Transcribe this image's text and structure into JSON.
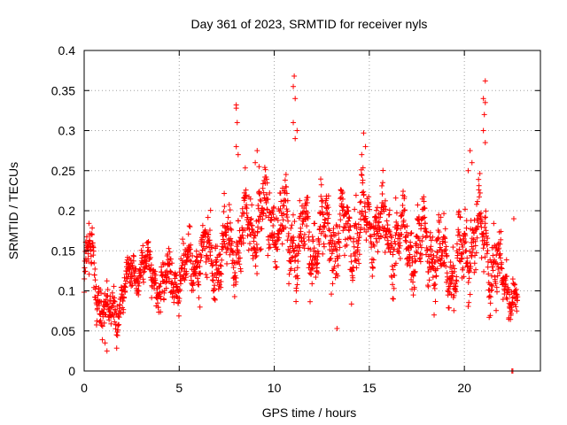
{
  "chart_data": {
    "type": "scatter",
    "title": "Day 361 of 2023, SRMTID for receiver nyls",
    "xlabel": "GPS time / hours",
    "ylabel": "SRMTID / TECUs",
    "xlim": [
      0,
      24
    ],
    "ylim": [
      0,
      0.4
    ],
    "xticks": [
      0,
      5,
      10,
      15,
      20
    ],
    "xtick_labels": [
      "0",
      "5",
      "10",
      "15",
      "20"
    ],
    "yticks": [
      0,
      0.05,
      0.1,
      0.15,
      0.2,
      0.25,
      0.3,
      0.35,
      0.4
    ],
    "ytick_labels": [
      "0",
      "0.05",
      "0.1",
      "0.15",
      "0.2",
      "0.25",
      "0.3",
      "0.35",
      "0.4"
    ],
    "grid": true,
    "marker": "+",
    "color": "#ff0000",
    "trend": [
      {
        "x": 0.0,
        "y": 0.12
      },
      {
        "x": 0.3,
        "y": 0.15
      },
      {
        "x": 0.7,
        "y": 0.1
      },
      {
        "x": 1.2,
        "y": 0.065
      },
      {
        "x": 1.8,
        "y": 0.085
      },
      {
        "x": 2.5,
        "y": 0.12
      },
      {
        "x": 3.0,
        "y": 0.13
      },
      {
        "x": 4.0,
        "y": 0.11
      },
      {
        "x": 5.0,
        "y": 0.12
      },
      {
        "x": 6.0,
        "y": 0.14
      },
      {
        "x": 7.0,
        "y": 0.14
      },
      {
        "x": 8.0,
        "y": 0.16
      },
      {
        "x": 9.0,
        "y": 0.19
      },
      {
        "x": 10.0,
        "y": 0.19
      },
      {
        "x": 11.0,
        "y": 0.17
      },
      {
        "x": 12.0,
        "y": 0.16
      },
      {
        "x": 13.0,
        "y": 0.17
      },
      {
        "x": 14.0,
        "y": 0.17
      },
      {
        "x": 15.0,
        "y": 0.19
      },
      {
        "x": 16.0,
        "y": 0.17
      },
      {
        "x": 17.0,
        "y": 0.16
      },
      {
        "x": 18.0,
        "y": 0.16
      },
      {
        "x": 19.0,
        "y": 0.13
      },
      {
        "x": 20.0,
        "y": 0.14
      },
      {
        "x": 20.5,
        "y": 0.18
      },
      {
        "x": 21.0,
        "y": 0.16
      },
      {
        "x": 21.5,
        "y": 0.14
      },
      {
        "x": 22.0,
        "y": 0.11
      },
      {
        "x": 22.8,
        "y": 0.09
      }
    ],
    "spread": [
      {
        "x": 0.0,
        "s": 0.035
      },
      {
        "x": 2.5,
        "s": 0.022
      },
      {
        "x": 5.0,
        "s": 0.03
      },
      {
        "x": 8.0,
        "s": 0.045
      },
      {
        "x": 11.0,
        "s": 0.045
      },
      {
        "x": 15.0,
        "s": 0.045
      },
      {
        "x": 18.0,
        "s": 0.04
      },
      {
        "x": 21.0,
        "s": 0.05
      },
      {
        "x": 22.8,
        "s": 0.02
      }
    ],
    "n_points": 2000,
    "notable_points": [
      {
        "x": 11.05,
        "y": 0.368
      },
      {
        "x": 11.0,
        "y": 0.355
      },
      {
        "x": 11.1,
        "y": 0.34
      },
      {
        "x": 11.0,
        "y": 0.31
      },
      {
        "x": 11.2,
        "y": 0.3
      },
      {
        "x": 11.1,
        "y": 0.29
      },
      {
        "x": 8.0,
        "y": 0.332
      },
      {
        "x": 8.0,
        "y": 0.328
      },
      {
        "x": 8.05,
        "y": 0.31
      },
      {
        "x": 8.0,
        "y": 0.28
      },
      {
        "x": 8.1,
        "y": 0.27
      },
      {
        "x": 21.1,
        "y": 0.362
      },
      {
        "x": 21.0,
        "y": 0.34
      },
      {
        "x": 21.1,
        "y": 0.335
      },
      {
        "x": 21.05,
        "y": 0.32
      },
      {
        "x": 21.0,
        "y": 0.3
      },
      {
        "x": 21.1,
        "y": 0.285
      },
      {
        "x": 14.7,
        "y": 0.297
      },
      {
        "x": 14.8,
        "y": 0.28
      },
      {
        "x": 14.6,
        "y": 0.27
      },
      {
        "x": 20.3,
        "y": 0.275
      },
      {
        "x": 20.4,
        "y": 0.26
      },
      {
        "x": 20.2,
        "y": 0.25
      },
      {
        "x": 9.1,
        "y": 0.275
      },
      {
        "x": 9.0,
        "y": 0.26
      },
      {
        "x": 9.2,
        "y": 0.255
      },
      {
        "x": 1.2,
        "y": 0.025
      },
      {
        "x": 1.1,
        "y": 0.035
      },
      {
        "x": 13.3,
        "y": 0.053
      },
      {
        "x": 22.6,
        "y": 0.19
      },
      {
        "x": 22.5,
        "y": 0.0
      },
      {
        "x": 22.55,
        "y": 0.0
      }
    ]
  }
}
